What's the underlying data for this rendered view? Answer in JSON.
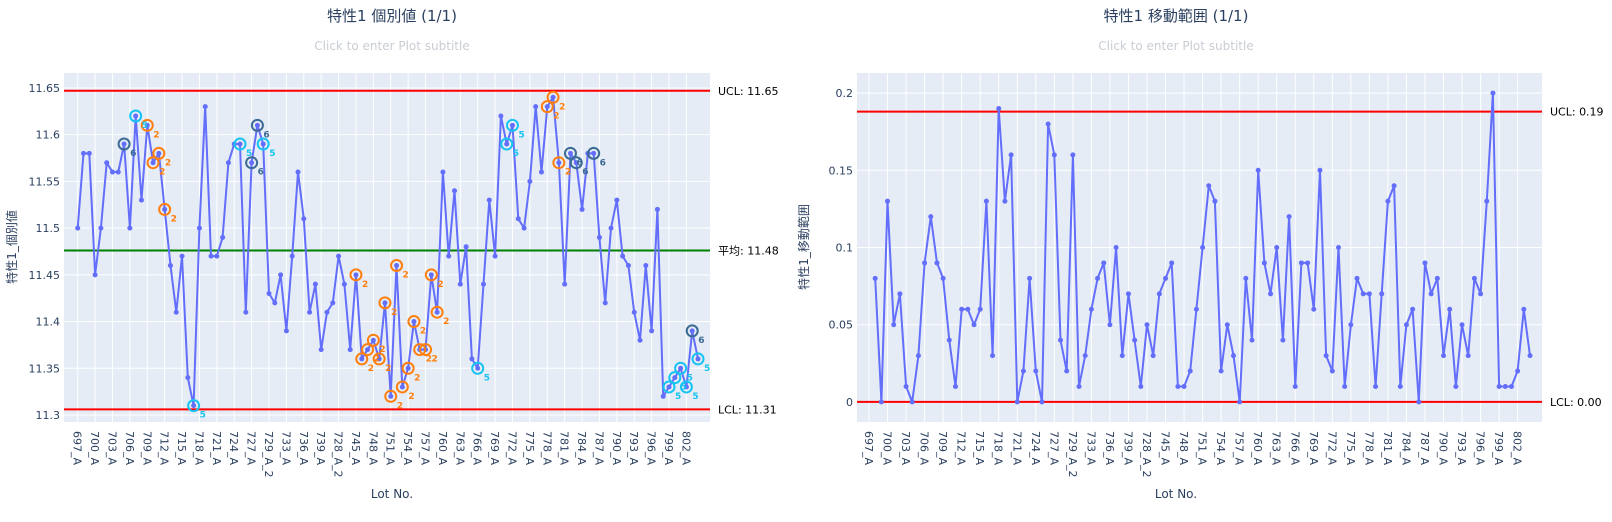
{
  "chart_data": [
    {
      "type": "line",
      "title": "特性1 個別値 (1/1)",
      "subtitle": "Click to enter Plot subtitle",
      "xlabel": "Lot No.",
      "ylabel": "特性1_個別値",
      "ylim": [
        11.2925,
        11.666
      ],
      "yticks": [
        11.3,
        11.35,
        11.4,
        11.45,
        11.5,
        11.55,
        11.6,
        11.65
      ],
      "ytick_labels": [
        "11.3",
        "11.35",
        "11.4",
        "11.45",
        "11.5",
        "11.55",
        "11.6",
        "11.65"
      ],
      "x_tick_labels": [
        "697_A",
        "700_A",
        "703_A",
        "706_A",
        "709_A",
        "712_A",
        "715_A",
        "718_A",
        "721_A",
        "724_A",
        "727_A",
        "729_A_2",
        "733_A",
        "736_A",
        "739_A",
        "728_A_2",
        "745_A",
        "748_A",
        "751_A",
        "754_A",
        "757_A",
        "760_A",
        "763_A",
        "766_A",
        "769_A",
        "772_A",
        "775_A",
        "778_A",
        "781_A",
        "784_A",
        "787_A",
        "790_A",
        "793_A",
        "796_A",
        "799_A",
        "802_A"
      ],
      "x_tick_every": 3,
      "values": [
        11.5,
        11.58,
        11.58,
        11.45,
        11.5,
        11.57,
        11.56,
        11.56,
        11.59,
        11.5,
        11.62,
        11.53,
        11.61,
        11.57,
        11.58,
        11.52,
        11.46,
        11.41,
        11.47,
        11.34,
        11.31,
        11.5,
        11.63,
        11.47,
        11.47,
        11.49,
        11.57,
        11.59,
        11.59,
        11.41,
        11.57,
        11.61,
        11.59,
        11.43,
        11.42,
        11.45,
        11.39,
        11.47,
        11.56,
        11.51,
        11.41,
        11.44,
        11.37,
        11.41,
        11.42,
        11.47,
        11.44,
        11.37,
        11.45,
        11.36,
        11.37,
        11.38,
        11.36,
        11.42,
        11.32,
        11.46,
        11.33,
        11.35,
        11.4,
        11.37,
        11.37,
        11.45,
        11.41,
        11.56,
        11.47,
        11.54,
        11.44,
        11.48,
        11.36,
        11.35,
        11.44,
        11.53,
        11.47,
        11.62,
        11.59,
        11.61,
        11.51,
        11.5,
        11.55,
        11.63,
        11.56,
        11.63,
        11.64,
        11.57,
        11.44,
        11.58,
        11.57,
        11.52,
        11.58,
        11.58,
        11.49,
        11.42,
        11.5,
        11.53,
        11.47,
        11.46,
        11.41,
        11.38,
        11.46,
        11.39,
        11.52,
        11.32,
        11.33,
        11.34,
        11.35,
        11.33,
        11.39,
        11.36
      ],
      "control_lines": [
        {
          "name": "UCL",
          "label": "UCL: 11.65",
          "value": 11.647,
          "color": "#ff0000"
        },
        {
          "name": "mean",
          "label": "平均: 11.48",
          "value": 11.476,
          "color": "#008000"
        },
        {
          "name": "LCL",
          "label": "LCL: 11.31",
          "value": 11.306,
          "color": "#ff0000"
        }
      ],
      "violations": [
        {
          "rule": "2",
          "color": "#ff7f0e",
          "indices": [
            12,
            13,
            14,
            15,
            48,
            49,
            50,
            51,
            52,
            53,
            54,
            55,
            56,
            57,
            58,
            59,
            60,
            61,
            62,
            81,
            82,
            83
          ]
        },
        {
          "rule": "5",
          "color": "#17c3f0",
          "indices": [
            10,
            20,
            28,
            32,
            69,
            74,
            75,
            102,
            103,
            104,
            105,
            107
          ]
        },
        {
          "rule": "6",
          "color": "#3b6a93",
          "indices": [
            8,
            30,
            31,
            85,
            86,
            89,
            106
          ]
        }
      ],
      "line_color": "#636efa"
    },
    {
      "type": "line",
      "title": "特性1 移動範囲 (1/1)",
      "subtitle": "Click to enter Plot subtitle",
      "xlabel": "Lot No.",
      "ylabel": "特性1_移動範囲",
      "ylim": [
        -0.013,
        0.213
      ],
      "yticks": [
        0,
        0.05,
        0.1,
        0.15,
        0.2
      ],
      "ytick_labels": [
        "0",
        "0.05",
        "0.1",
        "0.15",
        "0.2"
      ],
      "x_tick_labels": [
        "697_A",
        "700_A",
        "703_A",
        "706_A",
        "709_A",
        "712_A",
        "715_A",
        "718_A",
        "721_A",
        "724_A",
        "727_A",
        "729_A_2",
        "733_A",
        "736_A",
        "739_A",
        "728_A_2",
        "745_A",
        "748_A",
        "751_A",
        "754_A",
        "757_A",
        "760_A",
        "763_A",
        "766_A",
        "769_A",
        "772_A",
        "775_A",
        "778_A",
        "781_A",
        "784_A",
        "787_A",
        "790_A",
        "793_A",
        "796_A",
        "799_A",
        "802_A"
      ],
      "x_tick_every": 3,
      "values": [
        null,
        0.08,
        0,
        0.13,
        0.05,
        0.07,
        0.01,
        0,
        0.03,
        0.09,
        0.12,
        0.09,
        0.08,
        0.04,
        0.01,
        0.06,
        0.06,
        0.05,
        0.06,
        0.13,
        0.03,
        0.19,
        0.13,
        0.16,
        0,
        0.02,
        0.08,
        0.02,
        0,
        0.18,
        0.16,
        0.04,
        0.02,
        0.16,
        0.01,
        0.03,
        0.06,
        0.08,
        0.09,
        0.05,
        0.1,
        0.03,
        0.07,
        0.04,
        0.01,
        0.05,
        0.03,
        0.07,
        0.08,
        0.09,
        0.01,
        0.01,
        0.02,
        0.06,
        0.1,
        0.14,
        0.13,
        0.02,
        0.05,
        0.03,
        0,
        0.08,
        0.04,
        0.15,
        0.09,
        0.07,
        0.1,
        0.04,
        0.12,
        0.01,
        0.09,
        0.09,
        0.06,
        0.15,
        0.03,
        0.02,
        0.1,
        0.01,
        0.05,
        0.08,
        0.07,
        0.07,
        0.01,
        0.07,
        0.13,
        0.14,
        0.01,
        0.05,
        0.06,
        0,
        0.09,
        0.07,
        0.08,
        0.03,
        0.06,
        0.01,
        0.05,
        0.03,
        0.08,
        0.07,
        0.13,
        0.2,
        0.01,
        0.01,
        0.01,
        0.02,
        0.06,
        0.03
      ],
      "control_lines": [
        {
          "name": "UCL",
          "label": "UCL: 0.19",
          "value": 0.188,
          "color": "#ff0000"
        },
        {
          "name": "LCL",
          "label": "LCL: 0.00",
          "value": 0,
          "color": "#ff0000"
        }
      ],
      "violations": [],
      "line_color": "#636efa"
    }
  ]
}
